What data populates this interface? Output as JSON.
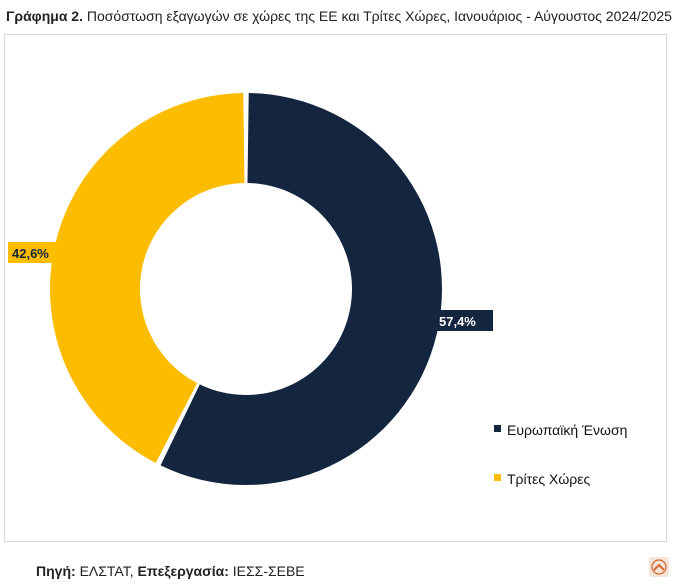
{
  "title": {
    "prefix": "Γράφημα 2.",
    "text": "Ποσόστωση εξαγωγών σε χώρες της ΕΕ και Τρίτες Χώρες, Ιανουάριος - Αύγουστος 2024/2025"
  },
  "source": {
    "label1": "Πηγή:",
    "value1": "ΕΛΣΤΑΤ,",
    "label2": "Επεξεργασία:",
    "value2": "ΙΕΣΣ-ΣΕΒΕ"
  },
  "chart_data": {
    "type": "pie",
    "donut": true,
    "series": [
      {
        "name": "Ευρωπαϊκή Ένωση",
        "value": 57.4,
        "label": "57,4%",
        "color": "#13253f"
      },
      {
        "name": "Τρίτες Χώρες",
        "value": 42.6,
        "label": "42,6%",
        "color": "#fcbd00"
      }
    ],
    "legend_position": "right-bottom"
  },
  "colors": {
    "eu": "#13253f",
    "third": "#fcbd00",
    "label_text_light": "#ffffff",
    "label_text_dark": "#13253f"
  },
  "icons": {
    "corner": "scroll-up-icon"
  }
}
